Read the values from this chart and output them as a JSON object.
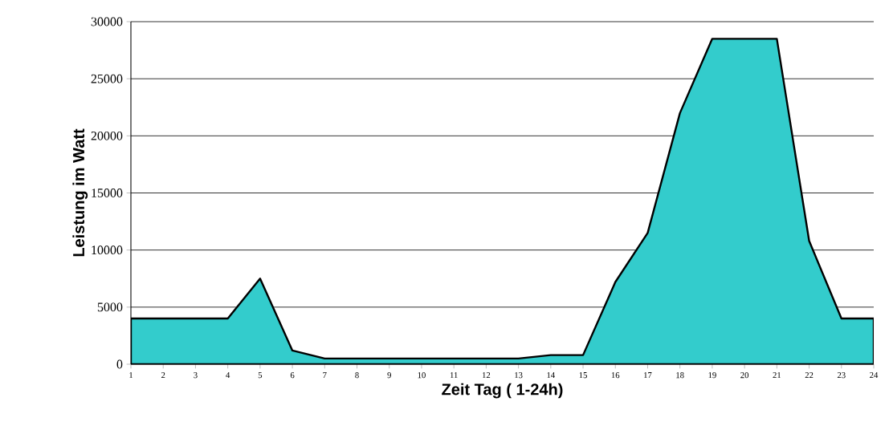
{
  "chart_data": {
    "type": "area",
    "xlabel": "Zeit Tag ( 1-24h)",
    "ylabel": "Leistung im Watt",
    "categories": [
      "1",
      "2",
      "3",
      "4",
      "5",
      "6",
      "7",
      "8",
      "9",
      "10",
      "11",
      "12",
      "13",
      "14",
      "15",
      "16",
      "17",
      "18",
      "19",
      "20",
      "21",
      "22",
      "23",
      "24"
    ],
    "values": [
      4000,
      4000,
      4000,
      4000,
      7500,
      1200,
      500,
      500,
      500,
      500,
      500,
      500,
      500,
      800,
      800,
      7200,
      11500,
      22000,
      28500,
      28500,
      28500,
      10800,
      4000,
      4000
    ],
    "color": "#33cccc",
    "ylim": [
      0,
      30000
    ],
    "yticks": [
      0,
      5000,
      10000,
      15000,
      20000,
      25000,
      30000
    ],
    "grid": "y"
  }
}
